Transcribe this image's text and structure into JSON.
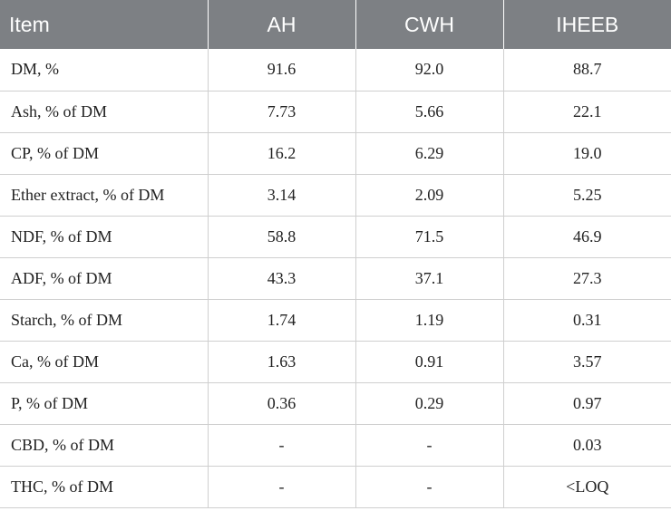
{
  "table": {
    "headers": [
      "Item",
      "AH",
      "CWH",
      "IHEEB"
    ],
    "rows": [
      [
        "DM, %",
        "91.6",
        "92.0",
        "88.7"
      ],
      [
        "Ash, % of DM",
        "7.73",
        "5.66",
        "22.1"
      ],
      [
        "CP, % of DM",
        "16.2",
        "6.29",
        "19.0"
      ],
      [
        "Ether extract, % of DM",
        "3.14",
        "2.09",
        "5.25"
      ],
      [
        "NDF, % of DM",
        "58.8",
        "71.5",
        "46.9"
      ],
      [
        "ADF, % of DM",
        "43.3",
        "37.1",
        "27.3"
      ],
      [
        "Starch, % of DM",
        "1.74",
        "1.19",
        "0.31"
      ],
      [
        "Ca, % of DM",
        "1.63",
        "0.91",
        "3.57"
      ],
      [
        "P, % of DM",
        "0.36",
        "0.29",
        "0.97"
      ],
      [
        "CBD, % of DM",
        "-",
        "-",
        "0.03"
      ],
      [
        "THC, % of DM",
        "-",
        "-",
        "<LOQ"
      ]
    ]
  },
  "colors": {
    "header_bg": "#7d8084",
    "header_text": "#ffffff",
    "grid": "#cfcfcf"
  }
}
